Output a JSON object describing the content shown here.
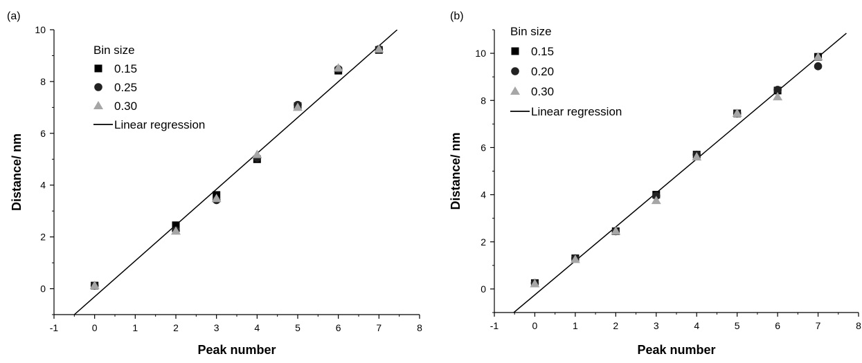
{
  "chart_data": [
    {
      "type": "scatter",
      "panel_label": "(a)",
      "xlabel": "Peak number",
      "ylabel": "Distance/ nm",
      "xlim": [
        -1,
        8
      ],
      "ylim": [
        -1,
        10
      ],
      "xticks": [
        -1,
        0,
        1,
        2,
        3,
        4,
        5,
        6,
        7,
        8
      ],
      "yticks": [
        0,
        2,
        4,
        6,
        8,
        10
      ],
      "legend_title": "Bin size",
      "legend_position": "top-left",
      "series": [
        {
          "name": "0.15",
          "marker": "square",
          "color": "#000000",
          "x": [
            0,
            2,
            3,
            4,
            5,
            6,
            7
          ],
          "y": [
            0.12,
            2.45,
            3.62,
            5.0,
            7.05,
            8.42,
            9.22
          ]
        },
        {
          "name": "0.25",
          "marker": "circle",
          "color": "#222222",
          "x": [
            0,
            2,
            3,
            4,
            5,
            6,
            7
          ],
          "y": [
            0.12,
            2.25,
            3.42,
            5.05,
            7.1,
            8.48,
            9.25
          ]
        },
        {
          "name": "0.30",
          "marker": "triangle",
          "color": "#a6a6a6",
          "x": [
            0,
            2,
            3,
            4,
            5,
            6,
            7
          ],
          "y": [
            0.12,
            2.22,
            3.48,
            5.18,
            7.0,
            8.52,
            9.25
          ]
        }
      ],
      "regression": {
        "name": "Linear regression",
        "x": [
          -0.5,
          7.45
        ],
        "y": [
          -1.0,
          10.0
        ]
      }
    },
    {
      "type": "scatter",
      "panel_label": "(b)",
      "xlabel": "Peak number",
      "ylabel": "Distance/ nm",
      "xlim": [
        -1,
        8
      ],
      "ylim": [
        -1,
        11
      ],
      "xticks": [
        -1,
        0,
        1,
        2,
        3,
        4,
        5,
        6,
        7,
        8
      ],
      "yticks": [
        0,
        2,
        4,
        6,
        8,
        10
      ],
      "legend_title": "Bin size",
      "legend_position": "top-left",
      "series": [
        {
          "name": "0.15",
          "marker": "square",
          "color": "#000000",
          "x": [
            0,
            1,
            2,
            3,
            4,
            5,
            6,
            7
          ],
          "y": [
            0.25,
            1.3,
            2.45,
            4.0,
            5.7,
            7.45,
            8.42,
            9.85
          ]
        },
        {
          "name": "0.20",
          "marker": "circle",
          "color": "#222222",
          "x": [
            0,
            1,
            2,
            3,
            4,
            5,
            6,
            7
          ],
          "y": [
            0.25,
            1.3,
            2.45,
            3.95,
            5.7,
            7.45,
            8.45,
            9.45
          ]
        },
        {
          "name": "0.30",
          "marker": "triangle",
          "color": "#a6a6a6",
          "x": [
            0,
            1,
            2,
            3,
            4,
            5,
            6,
            7
          ],
          "y": [
            0.22,
            1.25,
            2.45,
            3.75,
            5.6,
            7.45,
            8.15,
            9.85
          ]
        }
      ],
      "regression": {
        "name": "Linear regression",
        "x": [
          -0.52,
          7.7
        ],
        "y": [
          -1.0,
          10.85
        ]
      }
    }
  ]
}
